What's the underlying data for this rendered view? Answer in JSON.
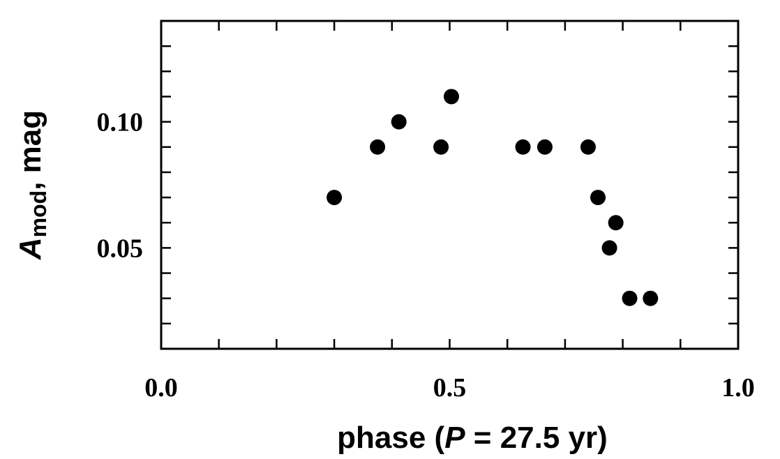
{
  "chart_data": {
    "type": "scatter",
    "title": "",
    "xlabel": {
      "prefix": "phase (",
      "variable": "P",
      "suffix": " = 27.5 yr)"
    },
    "ylabel": {
      "variable": "A",
      "subscript": "mod",
      "suffix": ", mag"
    },
    "xlim": [
      0.0,
      1.0
    ],
    "ylim": [
      0.01,
      0.14
    ],
    "x_tick_labels": [
      "0.0",
      "0.5",
      "1.0"
    ],
    "x_ticks": [
      0.0,
      0.5,
      1.0
    ],
    "y_tick_labels": [
      "0.05",
      "0.10"
    ],
    "y_ticks": [
      0.05,
      0.1
    ],
    "x_minor_step": 0.1,
    "y_minor_step": 0.01,
    "grid": false,
    "legend": "none",
    "marker_color": "#000000",
    "points": [
      {
        "x": 0.3,
        "y": 0.07
      },
      {
        "x": 0.375,
        "y": 0.09
      },
      {
        "x": 0.412,
        "y": 0.1
      },
      {
        "x": 0.485,
        "y": 0.09
      },
      {
        "x": 0.503,
        "y": 0.11
      },
      {
        "x": 0.627,
        "y": 0.09
      },
      {
        "x": 0.665,
        "y": 0.09
      },
      {
        "x": 0.74,
        "y": 0.09
      },
      {
        "x": 0.757,
        "y": 0.07
      },
      {
        "x": 0.777,
        "y": 0.05
      },
      {
        "x": 0.788,
        "y": 0.06
      },
      {
        "x": 0.812,
        "y": 0.03
      },
      {
        "x": 0.848,
        "y": 0.03
      }
    ]
  }
}
